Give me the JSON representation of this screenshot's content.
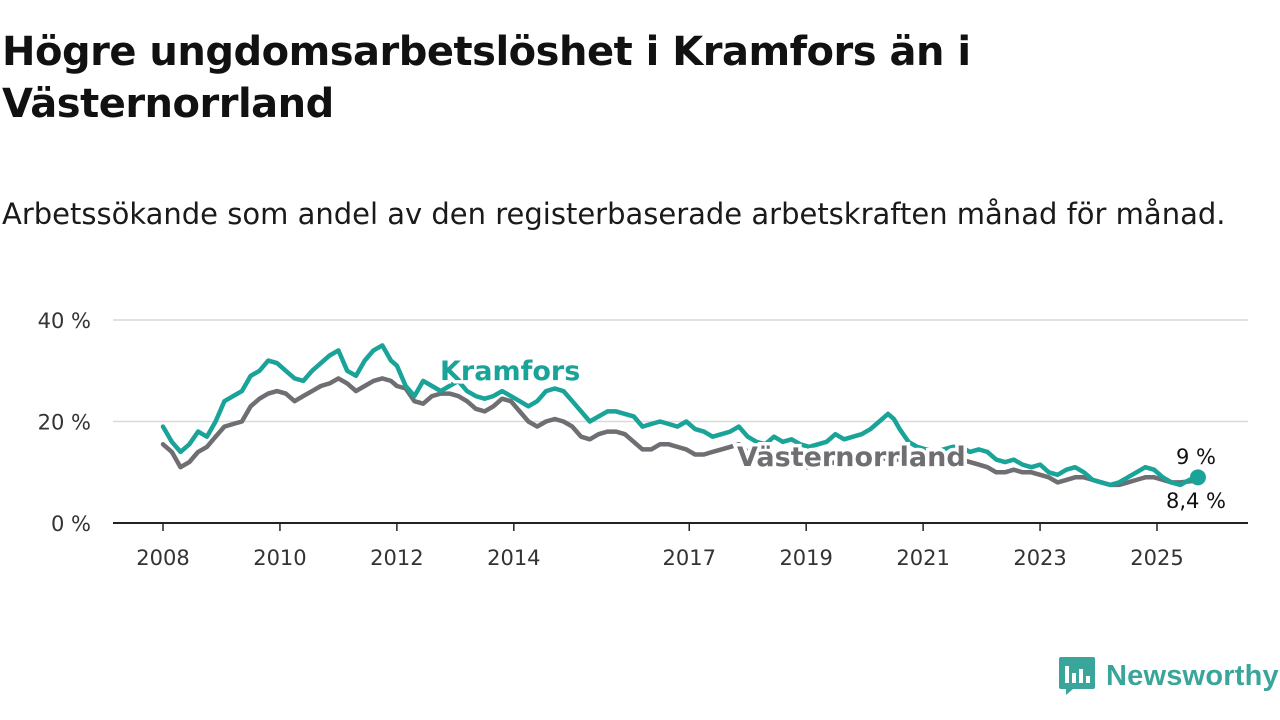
{
  "title": "Högre ungdomsarbetslöshet i Kramfors än i Västernorrland",
  "subtitle": "Arbetssökande som andel av den registerbaserade arbetskraften månad för månad.",
  "brand": {
    "name": "Newsworthy",
    "icon": "bar-chart-chat-icon",
    "color": "#3aa59a"
  },
  "chart_data": {
    "type": "line",
    "title": "Högre ungdomsarbetslöshet i Kramfors än i Västernorrland",
    "xlabel": "",
    "ylabel": "",
    "ylim": [
      0,
      40
    ],
    "xlim": [
      2008.0,
      2026.5
    ],
    "y_ticks": [
      0,
      20,
      40
    ],
    "y_tick_labels": [
      "0 %",
      "20 %",
      "40 %"
    ],
    "x_ticks": [
      2008,
      2010,
      2012,
      2014,
      2017,
      2019,
      2021,
      2023,
      2025
    ],
    "x_tick_labels": [
      "2008",
      "2010",
      "2012",
      "2014",
      "2017",
      "2019",
      "2021",
      "2023",
      "2025"
    ],
    "grid": true,
    "series": [
      {
        "name": "Kramfors",
        "color": "#1aa398",
        "end_label": "9 %",
        "x": [
          2008.0,
          2008.15,
          2008.3,
          2008.45,
          2008.6,
          2008.75,
          2008.9,
          2009.05,
          2009.2,
          2009.35,
          2009.5,
          2009.65,
          2009.8,
          2009.95,
          2010.1,
          2010.25,
          2010.4,
          2010.55,
          2010.7,
          2010.85,
          2011.0,
          2011.15,
          2011.3,
          2011.45,
          2011.6,
          2011.75,
          2011.9,
          2012.0,
          2012.15,
          2012.3,
          2012.45,
          2012.6,
          2012.75,
          2012.9,
          2013.05,
          2013.2,
          2013.35,
          2013.5,
          2013.65,
          2013.8,
          2013.95,
          2014.1,
          2014.25,
          2014.4,
          2014.55,
          2014.7,
          2014.85,
          2015.0,
          2015.15,
          2015.3,
          2015.45,
          2015.6,
          2015.75,
          2015.9,
          2016.05,
          2016.2,
          2016.35,
          2016.5,
          2016.65,
          2016.8,
          2016.95,
          2017.1,
          2017.25,
          2017.4,
          2017.55,
          2017.7,
          2017.85,
          2018.0,
          2018.15,
          2018.3,
          2018.45,
          2018.6,
          2018.75,
          2018.9,
          2019.05,
          2019.2,
          2019.35,
          2019.5,
          2019.65,
          2019.8,
          2019.95,
          2020.1,
          2020.25,
          2020.4,
          2020.5,
          2020.6,
          2020.75,
          2020.9,
          2021.05,
          2021.2,
          2021.35,
          2021.5,
          2021.65,
          2021.8,
          2021.95,
          2022.1,
          2022.25,
          2022.4,
          2022.55,
          2022.7,
          2022.85,
          2023.0,
          2023.15,
          2023.3,
          2023.45,
          2023.6,
          2023.75,
          2023.9,
          2024.05,
          2024.2,
          2024.35,
          2024.5,
          2024.65,
          2024.8,
          2024.95,
          2025.1,
          2025.25,
          2025.4,
          2025.55,
          2025.7
        ],
        "values": [
          19.0,
          16.0,
          14.0,
          15.5,
          18.0,
          17.0,
          20.0,
          24.0,
          25.0,
          26.0,
          29.0,
          30.0,
          32.0,
          31.5,
          30.0,
          28.5,
          28.0,
          30.0,
          31.5,
          33.0,
          34.0,
          30.0,
          29.0,
          32.0,
          34.0,
          35.0,
          32.0,
          31.0,
          27.0,
          25.0,
          28.0,
          27.0,
          26.0,
          27.0,
          28.0,
          26.0,
          25.0,
          24.5,
          25.0,
          26.0,
          25.0,
          24.0,
          23.0,
          24.0,
          26.0,
          26.5,
          26.0,
          24.0,
          22.0,
          20.0,
          21.0,
          22.0,
          22.0,
          21.5,
          21.0,
          19.0,
          19.5,
          20.0,
          19.5,
          19.0,
          20.0,
          18.5,
          18.0,
          17.0,
          17.5,
          18.0,
          19.0,
          17.0,
          16.0,
          15.5,
          17.0,
          16.0,
          16.5,
          15.5,
          15.0,
          15.5,
          16.0,
          17.5,
          16.5,
          17.0,
          17.5,
          18.5,
          20.0,
          21.5,
          20.5,
          18.5,
          16.0,
          15.0,
          14.5,
          14.0,
          14.5,
          15.0,
          15.0,
          14.0,
          14.5,
          14.0,
          12.5,
          12.0,
          12.5,
          11.5,
          11.0,
          11.5,
          10.0,
          9.5,
          10.5,
          11.0,
          10.0,
          8.5,
          8.0,
          7.5,
          8.0,
          9.0,
          10.0,
          11.0,
          10.5,
          9.0,
          8.0,
          7.5,
          8.5,
          9.0
        ]
      },
      {
        "name": "Västernorrland",
        "color": "#6e6e73",
        "end_label": "8,4 %",
        "x": [
          2008.0,
          2008.15,
          2008.3,
          2008.45,
          2008.6,
          2008.75,
          2008.9,
          2009.05,
          2009.2,
          2009.35,
          2009.5,
          2009.65,
          2009.8,
          2009.95,
          2010.1,
          2010.25,
          2010.4,
          2010.55,
          2010.7,
          2010.85,
          2011.0,
          2011.15,
          2011.3,
          2011.45,
          2011.6,
          2011.75,
          2011.9,
          2012.0,
          2012.15,
          2012.3,
          2012.45,
          2012.6,
          2012.75,
          2012.9,
          2013.05,
          2013.2,
          2013.35,
          2013.5,
          2013.65,
          2013.8,
          2013.95,
          2014.1,
          2014.25,
          2014.4,
          2014.55,
          2014.7,
          2014.85,
          2015.0,
          2015.15,
          2015.3,
          2015.45,
          2015.6,
          2015.75,
          2015.9,
          2016.05,
          2016.2,
          2016.35,
          2016.5,
          2016.65,
          2016.8,
          2016.95,
          2017.1,
          2017.25,
          2017.4,
          2017.55,
          2017.7,
          2017.85,
          2018.0,
          2018.15,
          2018.3,
          2018.45,
          2018.6,
          2018.75,
          2018.9,
          2019.05,
          2019.2,
          2019.35,
          2019.5,
          2019.65,
          2019.8,
          2019.95,
          2020.1,
          2020.25,
          2020.4,
          2020.5,
          2020.6,
          2020.75,
          2020.9,
          2021.05,
          2021.2,
          2021.35,
          2021.5,
          2021.65,
          2021.8,
          2021.95,
          2022.1,
          2022.25,
          2022.4,
          2022.55,
          2022.7,
          2022.85,
          2023.0,
          2023.15,
          2023.3,
          2023.45,
          2023.6,
          2023.75,
          2023.9,
          2024.05,
          2024.2,
          2024.35,
          2024.5,
          2024.65,
          2024.8,
          2024.95,
          2025.1,
          2025.25,
          2025.4,
          2025.55,
          2025.7
        ],
        "values": [
          15.5,
          14.0,
          11.0,
          12.0,
          14.0,
          15.0,
          17.0,
          19.0,
          19.5,
          20.0,
          23.0,
          24.5,
          25.5,
          26.0,
          25.5,
          24.0,
          25.0,
          26.0,
          27.0,
          27.5,
          28.5,
          27.5,
          26.0,
          27.0,
          28.0,
          28.5,
          28.0,
          27.0,
          26.5,
          24.0,
          23.5,
          25.0,
          25.5,
          25.5,
          25.0,
          24.0,
          22.5,
          22.0,
          23.0,
          24.5,
          24.0,
          22.0,
          20.0,
          19.0,
          20.0,
          20.5,
          20.0,
          19.0,
          17.0,
          16.5,
          17.5,
          18.0,
          18.0,
          17.5,
          16.0,
          14.5,
          14.5,
          15.5,
          15.5,
          15.0,
          14.5,
          13.5,
          13.5,
          14.0,
          14.5,
          15.0,
          15.5,
          14.0,
          13.0,
          12.0,
          12.5,
          12.0,
          11.5,
          11.0,
          11.0,
          11.0,
          11.5,
          12.0,
          12.5,
          12.5,
          13.0,
          13.5,
          13.0,
          12.5,
          12.5,
          12.5,
          12.0,
          12.0,
          12.0,
          12.0,
          12.0,
          12.0,
          12.5,
          12.0,
          11.5,
          11.0,
          10.0,
          10.0,
          10.5,
          10.0,
          10.0,
          9.5,
          9.0,
          8.0,
          8.5,
          9.0,
          9.0,
          8.5,
          8.0,
          7.5,
          7.5,
          8.0,
          8.5,
          9.0,
          9.0,
          8.5,
          8.0,
          8.0,
          8.2,
          8.4
        ]
      }
    ]
  }
}
